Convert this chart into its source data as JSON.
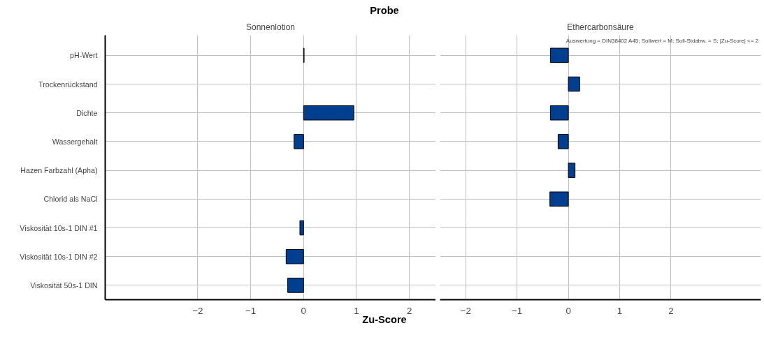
{
  "chart_data": [
    {
      "type": "bar",
      "orientation": "horizontal",
      "title": "Sonnenlotion",
      "subtitle": "Probe",
      "xlabel": "Zu-Score",
      "categories": [
        "pH-Wert",
        "Trockenrückstand",
        "Dichte",
        "Wassergehalt",
        "Hazen Farbzahl (Apha)",
        "Chlorid als NaCl",
        "Viskosität 10s-1 DIN #1",
        "Viskosität 10s-1 DIN #2",
        "Viskosität 50s-1 DIN"
      ],
      "series": [
        {
          "color": "#003f8f",
          "values": [
            0.01,
            null,
            0.95,
            -0.18,
            null,
            null,
            -0.07,
            -0.33,
            -0.3
          ]
        }
      ],
      "xlim": [
        -3.75,
        2.5
      ],
      "xticks": [
        -2,
        -1,
        0,
        1,
        2
      ],
      "grid": true
    },
    {
      "type": "bar",
      "orientation": "horizontal",
      "title": "Ethercarbonsäure",
      "annotations": [
        "Auswertung = DIN38402 A45; Sollwert = M; Soll-Stdabw. = S; |Zu-Score| <= 2"
      ],
      "series": [
        {
          "color": "#003f8f",
          "values": [
            -0.35,
            0.22,
            -0.35,
            -0.2,
            0.13,
            -0.36,
            null,
            null,
            null
          ]
        }
      ],
      "xlim": [
        -2.5,
        3.75
      ],
      "xticks": [
        -2,
        -1,
        0,
        1,
        2
      ],
      "grid": true,
      "tick_labels": "x"
    }
  ]
}
